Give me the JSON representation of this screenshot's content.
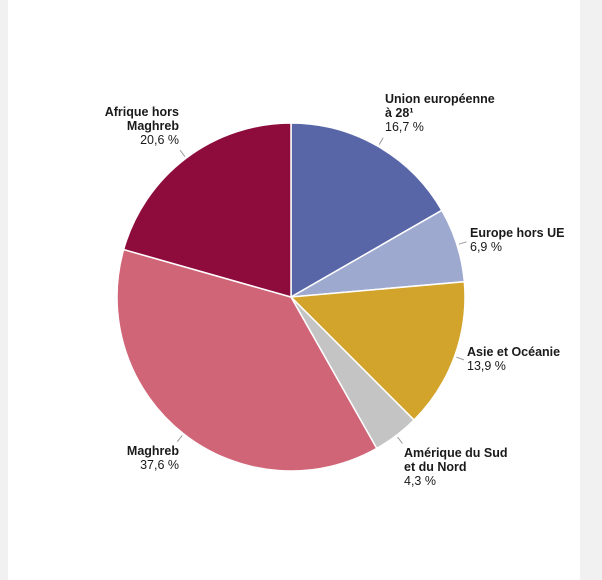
{
  "chart_data": {
    "type": "pie",
    "title": "",
    "slices": [
      {
        "label_lines": [
          "Union européenne",
          "à 28¹"
        ],
        "value": 16.7,
        "display": "16,7 %",
        "color": "#5866a8"
      },
      {
        "label_lines": [
          "Europe hors UE"
        ],
        "value": 6.9,
        "display": "6,9 %",
        "color": "#9ea9d0"
      },
      {
        "label_lines": [
          "Asie et Océanie"
        ],
        "value": 13.9,
        "display": "13,9 %",
        "color": "#d3a42b"
      },
      {
        "label_lines": [
          "Amérique du Sud",
          "et du Nord"
        ],
        "value": 4.3,
        "display": "4,3 %",
        "color": "#c4c4c4"
      },
      {
        "label_lines": [
          "Maghreb"
        ],
        "value": 37.6,
        "display": "37,6 %",
        "color": "#d06577"
      },
      {
        "label_lines": [
          "Afrique hors",
          "Maghreb"
        ],
        "value": 20.6,
        "display": "20,6 %",
        "color": "#8e0c3c"
      }
    ],
    "start_angle": "12 o'clock",
    "direction": "clockwise",
    "legend": "none"
  }
}
